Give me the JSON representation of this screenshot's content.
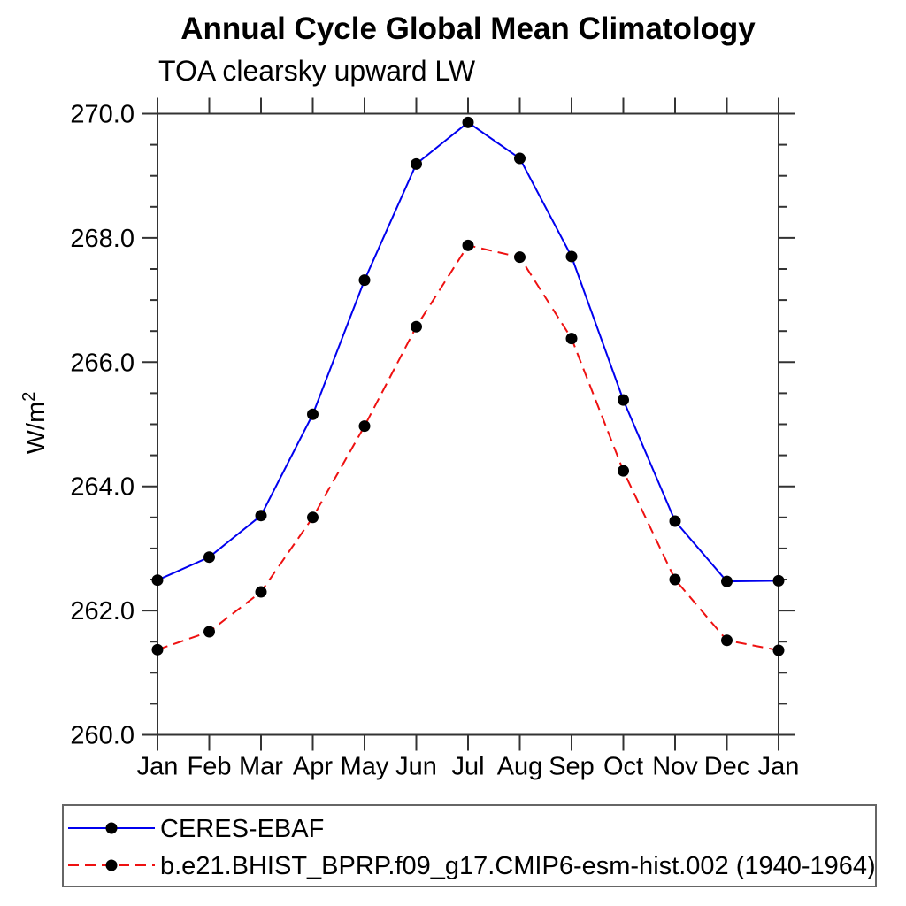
{
  "chart": {
    "title": "Annual Cycle Global Mean Climatology",
    "subtitle": "TOA clearsky upward LW",
    "ylabel_base": "W/m",
    "ylabel_sup": "2"
  },
  "chart_data": {
    "type": "line",
    "title": "Annual Cycle Global Mean Climatology",
    "subtitle": "TOA clearsky upward LW",
    "ylabel": "W/m^2",
    "xlabel": "",
    "categories": [
      "Jan",
      "Feb",
      "Mar",
      "Apr",
      "May",
      "Jun",
      "Jul",
      "Aug",
      "Sep",
      "Oct",
      "Nov",
      "Dec",
      "Jan"
    ],
    "series": [
      {
        "name": "CERES-EBAF",
        "color": "#0000ee",
        "line_style": "solid",
        "marker": "circle",
        "marker_color": "#000000",
        "values": [
          262.49,
          262.86,
          263.53,
          265.16,
          267.32,
          269.19,
          269.86,
          269.28,
          267.7,
          265.39,
          263.44,
          262.47,
          262.48
        ]
      },
      {
        "name": "b.e21.BHIST_BPRP.f09_g17.CMIP6-esm-hist.002 (1940-1964)",
        "color": "#ee1111",
        "line_style": "dashed",
        "marker": "circle",
        "marker_color": "#000000",
        "values": [
          261.37,
          261.66,
          262.3,
          263.5,
          264.97,
          266.57,
          267.88,
          267.69,
          266.38,
          264.25,
          262.5,
          261.52,
          261.36
        ]
      }
    ],
    "ylim": [
      260.0,
      270.0
    ],
    "ytick_major_step": 2.0,
    "ytick_minor_step": 0.5,
    "ytick_labels": [
      "260.0",
      "262.0",
      "264.0",
      "266.0",
      "268.0",
      "270.0"
    ],
    "grid": false,
    "legend_position": "bottom",
    "axis_color": "#333333",
    "legend_border_color": "#666666"
  }
}
